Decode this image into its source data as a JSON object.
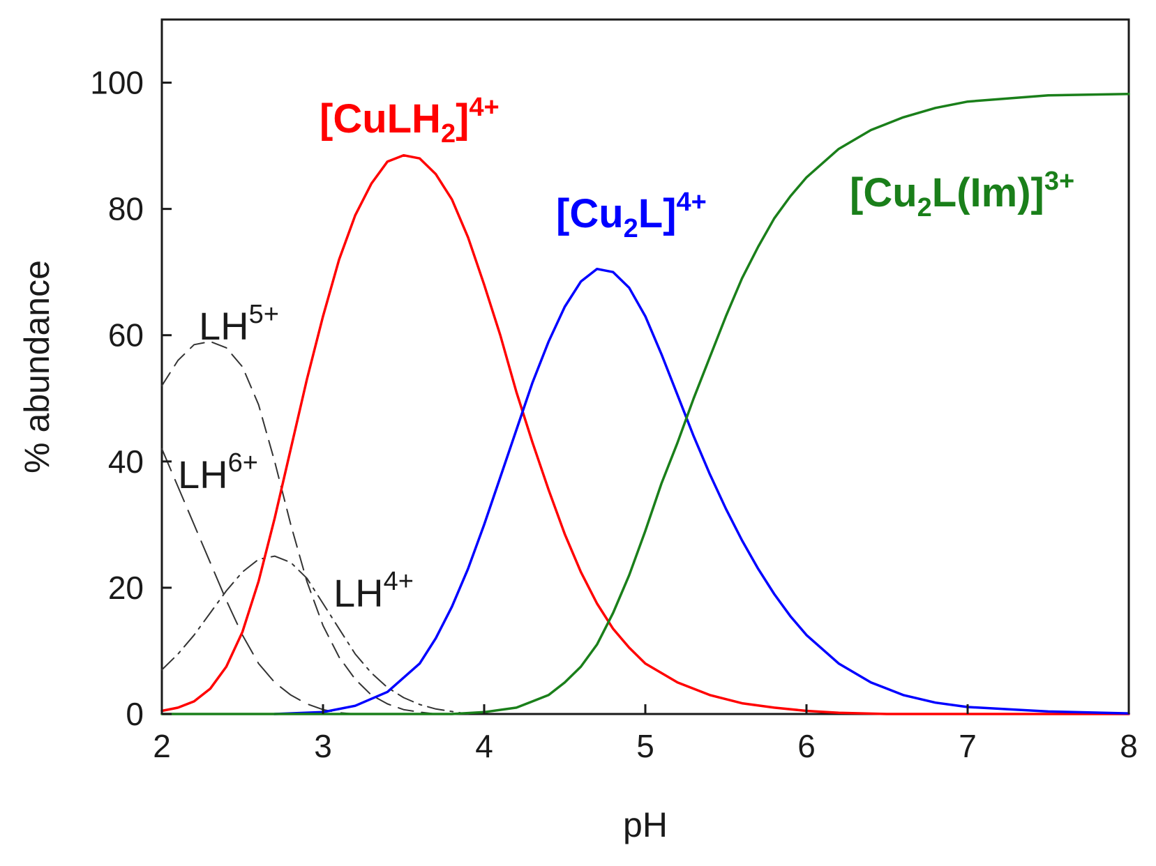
{
  "chart_data": {
    "type": "line",
    "xlabel": "pH",
    "ylabel": "% abundance",
    "xlim": [
      2,
      8
    ],
    "ylim": [
      0,
      110
    ],
    "xticks": [
      2,
      3,
      4,
      5,
      6,
      7,
      8
    ],
    "yticks": [
      0,
      20,
      40,
      60,
      80,
      100
    ],
    "grid": false,
    "series": [
      {
        "name": "LH6+",
        "label_base": "LH",
        "label_sup": "6+",
        "color": "#333333",
        "style": "long-dash",
        "points": [
          [
            2.0,
            42
          ],
          [
            2.1,
            36
          ],
          [
            2.2,
            30
          ],
          [
            2.3,
            24
          ],
          [
            2.4,
            18
          ],
          [
            2.5,
            12.5
          ],
          [
            2.6,
            8
          ],
          [
            2.7,
            5
          ],
          [
            2.8,
            3
          ],
          [
            2.9,
            1.6
          ],
          [
            3.0,
            0.7
          ],
          [
            3.1,
            0.2
          ],
          [
            3.2,
            0
          ]
        ]
      },
      {
        "name": "LH5+",
        "label_base": "LH",
        "label_sup": "5+",
        "color": "#333333",
        "style": "dash",
        "points": [
          [
            2.0,
            52
          ],
          [
            2.1,
            56
          ],
          [
            2.2,
            58.5
          ],
          [
            2.3,
            59
          ],
          [
            2.4,
            58
          ],
          [
            2.5,
            55
          ],
          [
            2.6,
            49
          ],
          [
            2.7,
            40
          ],
          [
            2.8,
            30
          ],
          [
            2.9,
            21
          ],
          [
            3.0,
            14
          ],
          [
            3.1,
            9
          ],
          [
            3.2,
            5.5
          ],
          [
            3.3,
            3
          ],
          [
            3.4,
            1.6
          ],
          [
            3.5,
            0.7
          ],
          [
            3.6,
            0.3
          ],
          [
            3.7,
            0
          ]
        ]
      },
      {
        "name": "LH4+",
        "label_base": "LH",
        "label_sup": "4+",
        "color": "#333333",
        "style": "dash-dot",
        "points": [
          [
            2.0,
            7
          ],
          [
            2.1,
            9.5
          ],
          [
            2.2,
            12.5
          ],
          [
            2.3,
            16
          ],
          [
            2.4,
            19.5
          ],
          [
            2.5,
            22.5
          ],
          [
            2.6,
            24.5
          ],
          [
            2.7,
            25
          ],
          [
            2.8,
            24
          ],
          [
            2.9,
            21.5
          ],
          [
            3.0,
            17.5
          ],
          [
            3.1,
            13.5
          ],
          [
            3.2,
            9.5
          ],
          [
            3.3,
            6.5
          ],
          [
            3.4,
            4.2
          ],
          [
            3.5,
            2.6
          ],
          [
            3.6,
            1.5
          ],
          [
            3.7,
            0.8
          ],
          [
            3.8,
            0.4
          ],
          [
            3.9,
            0
          ]
        ]
      },
      {
        "name": "[CuLH2]4+",
        "label_base": "[CuLH",
        "label_sub": "2",
        "label_tail": "]",
        "label_sup": "4+",
        "color": "#ff0000",
        "style": "solid",
        "points": [
          [
            2.0,
            0.5
          ],
          [
            2.1,
            1
          ],
          [
            2.2,
            2
          ],
          [
            2.3,
            4
          ],
          [
            2.4,
            7.5
          ],
          [
            2.5,
            13
          ],
          [
            2.6,
            21
          ],
          [
            2.7,
            31
          ],
          [
            2.8,
            42
          ],
          [
            2.9,
            53
          ],
          [
            3.0,
            63
          ],
          [
            3.1,
            72
          ],
          [
            3.2,
            79
          ],
          [
            3.3,
            84
          ],
          [
            3.4,
            87.5
          ],
          [
            3.5,
            88.5
          ],
          [
            3.6,
            88
          ],
          [
            3.7,
            85.5
          ],
          [
            3.8,
            81.5
          ],
          [
            3.9,
            75.5
          ],
          [
            4.0,
            68
          ],
          [
            4.1,
            60
          ],
          [
            4.2,
            51
          ],
          [
            4.3,
            43
          ],
          [
            4.4,
            35.5
          ],
          [
            4.5,
            28.5
          ],
          [
            4.6,
            22.5
          ],
          [
            4.7,
            17.5
          ],
          [
            4.8,
            13.5
          ],
          [
            4.9,
            10.5
          ],
          [
            5.0,
            8
          ],
          [
            5.2,
            5
          ],
          [
            5.4,
            3
          ],
          [
            5.6,
            1.7
          ],
          [
            5.8,
            1
          ],
          [
            6.0,
            0.5
          ],
          [
            6.2,
            0.2
          ],
          [
            6.5,
            0
          ],
          [
            8.0,
            0
          ]
        ]
      },
      {
        "name": "[Cu2L]4+",
        "label_base": "[Cu",
        "label_sub": "2",
        "label_tail": "L]",
        "label_sup": "4+",
        "color": "#0000ff",
        "style": "solid",
        "points": [
          [
            2.7,
            0
          ],
          [
            3.0,
            0.3
          ],
          [
            3.2,
            1.3
          ],
          [
            3.4,
            3.5
          ],
          [
            3.6,
            8
          ],
          [
            3.7,
            12
          ],
          [
            3.8,
            17
          ],
          [
            3.9,
            23
          ],
          [
            4.0,
            30
          ],
          [
            4.1,
            37.5
          ],
          [
            4.2,
            45
          ],
          [
            4.3,
            52.5
          ],
          [
            4.4,
            59
          ],
          [
            4.5,
            64.5
          ],
          [
            4.6,
            68.5
          ],
          [
            4.7,
            70.5
          ],
          [
            4.8,
            70
          ],
          [
            4.9,
            67.5
          ],
          [
            5.0,
            63
          ],
          [
            5.1,
            57
          ],
          [
            5.2,
            50.5
          ],
          [
            5.3,
            44
          ],
          [
            5.4,
            38
          ],
          [
            5.5,
            32.5
          ],
          [
            5.6,
            27.5
          ],
          [
            5.7,
            23
          ],
          [
            5.8,
            19
          ],
          [
            5.9,
            15.5
          ],
          [
            6.0,
            12.5
          ],
          [
            6.2,
            8
          ],
          [
            6.4,
            5
          ],
          [
            6.6,
            3
          ],
          [
            6.8,
            1.8
          ],
          [
            7.0,
            1.1
          ],
          [
            7.5,
            0.4
          ],
          [
            8.0,
            0.1
          ]
        ]
      },
      {
        "name": "[Cu2L(Im)]3+",
        "label_base": "[Cu",
        "label_sub": "2",
        "label_tail": "L(Im)]",
        "label_sup": "3+",
        "color": "#1a7f1a",
        "style": "solid",
        "points": [
          [
            2.0,
            0
          ],
          [
            3.8,
            0
          ],
          [
            4.0,
            0.3
          ],
          [
            4.2,
            1
          ],
          [
            4.4,
            3
          ],
          [
            4.5,
            5
          ],
          [
            4.6,
            7.5
          ],
          [
            4.7,
            11
          ],
          [
            4.8,
            16
          ],
          [
            4.9,
            22
          ],
          [
            5.0,
            29
          ],
          [
            5.1,
            36.5
          ],
          [
            5.2,
            43
          ],
          [
            5.3,
            50
          ],
          [
            5.4,
            56.5
          ],
          [
            5.5,
            63
          ],
          [
            5.6,
            69
          ],
          [
            5.7,
            74
          ],
          [
            5.8,
            78.5
          ],
          [
            5.9,
            82
          ],
          [
            6.0,
            85
          ],
          [
            6.2,
            89.5
          ],
          [
            6.4,
            92.5
          ],
          [
            6.6,
            94.5
          ],
          [
            6.8,
            96
          ],
          [
            7.0,
            97
          ],
          [
            7.5,
            98
          ],
          [
            8.0,
            98.2
          ]
        ]
      }
    ]
  }
}
